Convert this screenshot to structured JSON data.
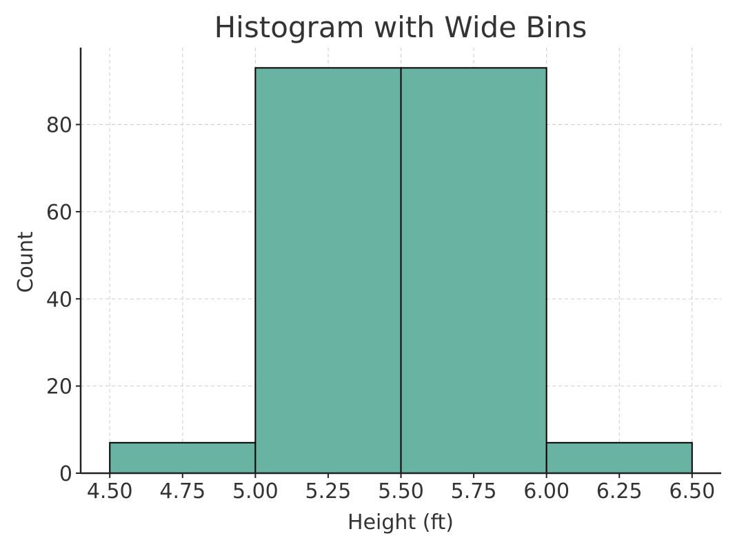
{
  "chart_data": {
    "type": "bar",
    "title": "Histogram with Wide Bins",
    "xlabel": "Height (ft)",
    "ylabel": "Count",
    "bins": [
      {
        "start": 4.5,
        "end": 5.0,
        "count": 7
      },
      {
        "start": 5.0,
        "end": 5.5,
        "count": 93
      },
      {
        "start": 5.5,
        "end": 6.0,
        "count": 93
      },
      {
        "start": 6.0,
        "end": 6.5,
        "count": 7
      }
    ],
    "x_ticks": [
      "4.50",
      "4.75",
      "5.00",
      "5.25",
      "5.50",
      "5.75",
      "6.00",
      "6.25",
      "6.50"
    ],
    "y_ticks": [
      "0",
      "20",
      "40",
      "60",
      "80"
    ],
    "xlim": [
      4.4,
      6.6
    ],
    "ylim": [
      0,
      97.65
    ],
    "grid": true,
    "bar_color": "#69b3a2",
    "edge_color": "#000000"
  }
}
